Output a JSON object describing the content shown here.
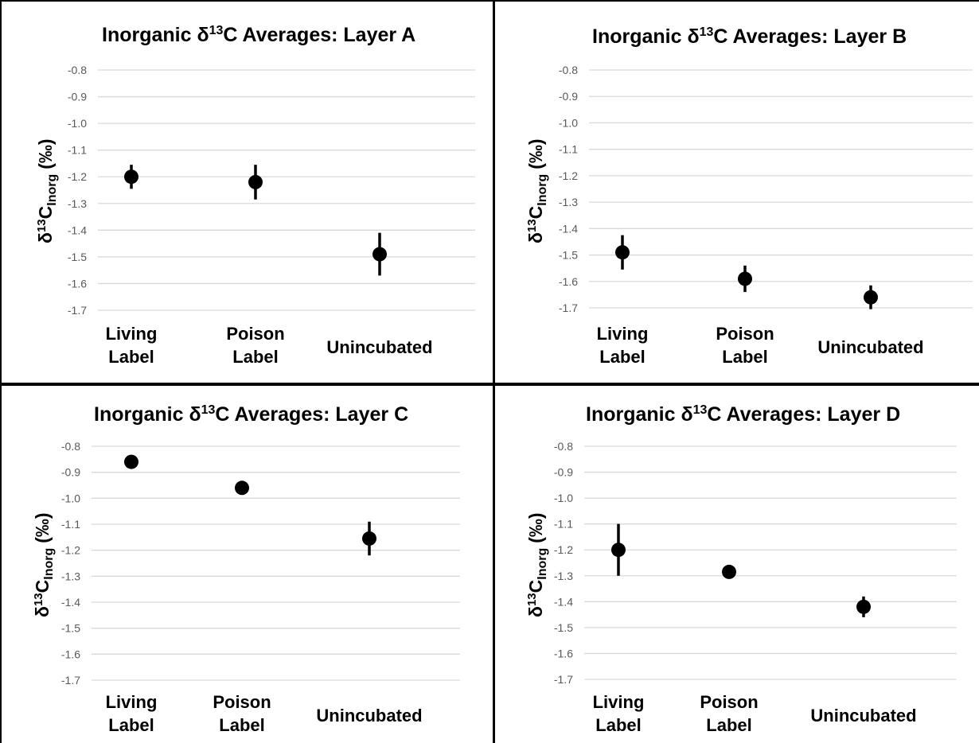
{
  "chart_data": [
    {
      "type": "scatter",
      "title_prefix": "Inorganic δ",
      "title_sup": "13",
      "title_suffix": "C Averages: Layer A",
      "ylabel": {
        "prefix": "δ",
        "sup": "13",
        "main": "C",
        "sub": "Inorg",
        "unit": "(‰)"
      },
      "ylim": [
        -1.7,
        -0.8
      ],
      "yticks": [
        "-0.8",
        "-0.9",
        "-1.0",
        "-1.1",
        "-1.2",
        "-1.3",
        "-1.4",
        "-1.5",
        "-1.6",
        "-1.7"
      ],
      "grid": true,
      "categories": [
        [
          "Living",
          "Label"
        ],
        [
          "Poison",
          "Label"
        ],
        [
          "Unincubated"
        ]
      ],
      "values": [
        -1.2,
        -1.22,
        -1.49
      ],
      "errors": [
        0.045,
        0.065,
        0.08
      ]
    },
    {
      "type": "scatter",
      "title_prefix": "Inorganic δ",
      "title_sup": "13",
      "title_suffix": "C Averages: Layer B",
      "ylabel": {
        "prefix": "δ",
        "sup": "13",
        "main": "C",
        "sub": "Inorg",
        "unit": "(‰)"
      },
      "ylim": [
        -1.7,
        -0.8
      ],
      "yticks": [
        "-0.8",
        "-0.9",
        "-1.0",
        "-1.1",
        "-1.2",
        "-1.3",
        "-1.4",
        "-1.5",
        "-1.6",
        "-1.7"
      ],
      "grid": true,
      "categories": [
        [
          "Living",
          "Label"
        ],
        [
          "Poison",
          "Label"
        ],
        [
          "Unincubated"
        ]
      ],
      "values": [
        -1.49,
        -1.59,
        -1.66
      ],
      "errors": [
        0.065,
        0.05,
        0.045
      ]
    },
    {
      "type": "scatter",
      "title_prefix": "Inorganic δ",
      "title_sup": "13",
      "title_suffix": "C Averages: Layer C",
      "ylabel": {
        "prefix": "δ",
        "sup": "13",
        "main": "C",
        "sub": "Inorg",
        "unit": "(‰)"
      },
      "ylim": [
        -1.7,
        -0.8
      ],
      "yticks": [
        "-0.8",
        "-0.9",
        "-1.0",
        "-1.1",
        "-1.2",
        "-1.3",
        "-1.4",
        "-1.5",
        "-1.6",
        "-1.7"
      ],
      "grid": true,
      "categories": [
        [
          "Living",
          "Label"
        ],
        [
          "Poison",
          "Label"
        ],
        [
          "Unincubated"
        ]
      ],
      "values": [
        -0.86,
        -0.96,
        -1.155
      ],
      "errors": [
        0,
        0,
        0.065
      ]
    },
    {
      "type": "scatter",
      "title_prefix": "Inorganic δ",
      "title_sup": "13",
      "title_suffix": "C Averages: Layer D",
      "ylabel": {
        "prefix": "δ",
        "sup": "13",
        "main": "C",
        "sub": "Inorg",
        "unit": "(‰)"
      },
      "ylim": [
        -1.7,
        -0.8
      ],
      "yticks": [
        "-0.8",
        "-0.9",
        "-1.0",
        "-1.1",
        "-1.2",
        "-1.3",
        "-1.4",
        "-1.5",
        "-1.6",
        "-1.7"
      ],
      "grid": true,
      "categories": [
        [
          "Living",
          "Label"
        ],
        [
          "Poison",
          "Label"
        ],
        [
          "Unincubated"
        ]
      ],
      "values": [
        -1.2,
        -1.285,
        -1.42
      ],
      "errors": [
        0.1,
        0,
        0.04
      ]
    }
  ],
  "colors": {
    "marker": "#000000",
    "grid": "#d9d9d9",
    "tick_text": "#595959",
    "text": "#000000",
    "border": "#000000"
  }
}
